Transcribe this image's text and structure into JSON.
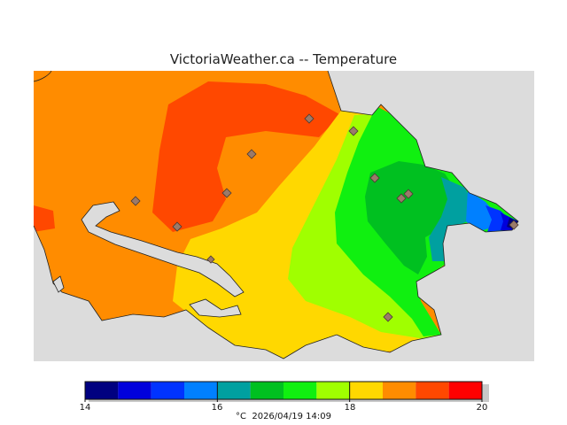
{
  "title": "VictoriaWeather.ca -- Temperature",
  "colors": {
    "sea": "#dcdcdc",
    "coast": "#222222",
    "marker_fill": "#9b7a6a",
    "marker_stroke": "#4a3a33"
  },
  "legend": {
    "min": 14,
    "max": 20,
    "tick_labels": [
      "14",
      "16",
      "18",
      "20"
    ],
    "tick_values": [
      14,
      16,
      18,
      20
    ],
    "bins": [
      {
        "from": 14.0,
        "to": 14.5,
        "color": "#000080"
      },
      {
        "from": 14.5,
        "to": 15.0,
        "color": "#0000dc"
      },
      {
        "from": 15.0,
        "to": 15.5,
        "color": "#0033ff"
      },
      {
        "from": 15.5,
        "to": 16.0,
        "color": "#0080ff"
      },
      {
        "from": 16.0,
        "to": 16.5,
        "color": "#00a0a0"
      },
      {
        "from": 16.5,
        "to": 17.0,
        "color": "#00c020"
      },
      {
        "from": 17.0,
        "to": 17.5,
        "color": "#10f010"
      },
      {
        "from": 17.5,
        "to": 18.0,
        "color": "#a0ff00"
      },
      {
        "from": 18.0,
        "to": 18.5,
        "color": "#ffd800"
      },
      {
        "from": 18.5,
        "to": 19.0,
        "color": "#ff8c00"
      },
      {
        "from": 19.0,
        "to": 19.5,
        "color": "#ff4800"
      },
      {
        "from": 19.5,
        "to": 20.0,
        "color": "#ff0000"
      }
    ],
    "unit": "°C",
    "timestamp": "2026/04/19 14:09"
  }
}
